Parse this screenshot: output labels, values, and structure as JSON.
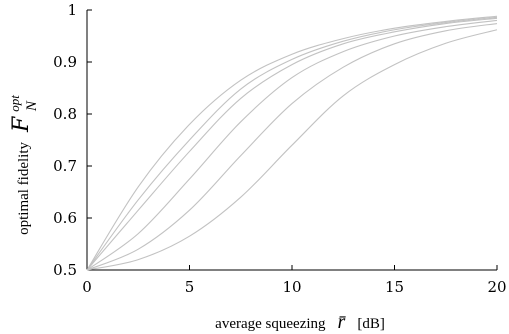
{
  "chart_data": {
    "type": "line",
    "title": "",
    "xlabel": {
      "text": "average squeezing",
      "symbol": "r̄",
      "unit": "[dB]"
    },
    "ylabel": {
      "text": "optimal fidelity",
      "symbol": "F",
      "superscript": "opt",
      "subscript": "N"
    },
    "xlim": [
      0,
      20
    ],
    "ylim": [
      0.5,
      1.0
    ],
    "xticks": [
      "0",
      "5",
      "10",
      "15",
      "20"
    ],
    "yticks": [
      "0.5",
      "0.6",
      "0.7",
      "0.8",
      "0.9",
      "1"
    ],
    "grid": false,
    "line_color": "#c2c2c2",
    "x": [
      0,
      2.5,
      5,
      7.5,
      10,
      12.5,
      15,
      17.5,
      20
    ],
    "series": [
      {
        "values": [
          0.5,
          0.66,
          0.78,
          0.865,
          0.915,
          0.945,
          0.965,
          0.978,
          0.988
        ]
      },
      {
        "values": [
          0.5,
          0.635,
          0.75,
          0.848,
          0.905,
          0.94,
          0.962,
          0.976,
          0.986
        ]
      },
      {
        "values": [
          0.5,
          0.615,
          0.728,
          0.83,
          0.895,
          0.935,
          0.958,
          0.974,
          0.984
        ]
      },
      {
        "values": [
          0.5,
          0.57,
          0.675,
          0.785,
          0.87,
          0.92,
          0.95,
          0.968,
          0.98
        ]
      },
      {
        "values": [
          0.5,
          0.54,
          0.615,
          0.72,
          0.82,
          0.89,
          0.935,
          0.96,
          0.974
        ]
      },
      {
        "values": [
          0.5,
          0.52,
          0.565,
          0.64,
          0.74,
          0.835,
          0.895,
          0.936,
          0.962
        ]
      }
    ]
  }
}
